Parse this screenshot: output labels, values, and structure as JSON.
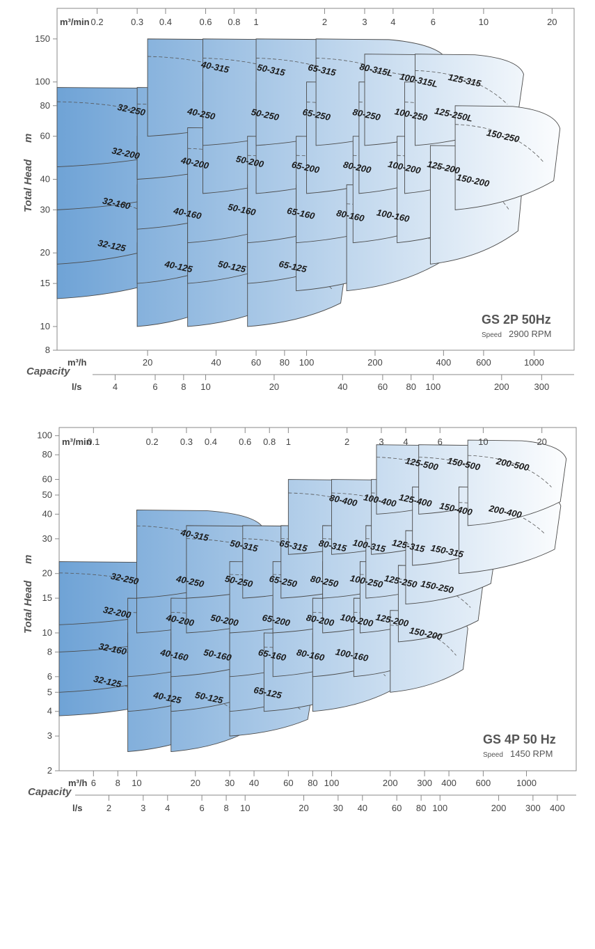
{
  "colors": {
    "gradient_start": "#6fa3d6",
    "gradient_end": "#ffffff",
    "frame": "#888888",
    "text": "#444444"
  },
  "chart_data": [
    {
      "type": "area",
      "title": "GS 2P 50Hz",
      "subtitle_prefix": "Speed",
      "subtitle_value": "2900 RPM",
      "ylabel": "Total Head",
      "yunit": "m",
      "xlabel": "Capacity",
      "yscale": "log",
      "xscale": "log",
      "xunit": "m³/h",
      "xlim": [
        8,
        1500
      ],
      "ylim": [
        8,
        200
      ],
      "y_ticks": [
        "150",
        "100",
        "80",
        "60",
        "40",
        "30",
        "20",
        "15",
        "10",
        "8"
      ],
      "top_axis_unit": "m³/min",
      "top_axis_ticks": [
        "0.2",
        "0.3",
        "0.4",
        "0.6",
        "0.8",
        "1",
        "2",
        "3",
        "4",
        "6",
        "10",
        "20"
      ],
      "bottom_axis_unit": "m³/h",
      "bottom_axis_ticks": [
        "20",
        "40",
        "60",
        "80",
        "100",
        "200",
        "400",
        "600",
        "1000"
      ],
      "ls_axis_unit": "l/s",
      "ls_axis_ticks": [
        "4",
        "6",
        "8",
        "10",
        "20",
        "40",
        "60",
        "80",
        "100",
        "200",
        "300"
      ],
      "series": [
        {
          "name": "32-125",
          "q": [
            8,
            27
          ],
          "h": [
            13,
            26
          ]
        },
        {
          "name": "32-160",
          "q": [
            8,
            30
          ],
          "h": [
            18,
            40
          ]
        },
        {
          "name": "32-200",
          "q": [
            8,
            37
          ],
          "h": [
            30,
            63
          ]
        },
        {
          "name": "32-250",
          "q": [
            8,
            42
          ],
          "h": [
            45,
            95
          ]
        },
        {
          "name": "40-125",
          "q": [
            18,
            45
          ],
          "h": [
            10,
            22
          ]
        },
        {
          "name": "40-160",
          "q": [
            18,
            55
          ],
          "h": [
            15,
            38
          ]
        },
        {
          "name": "40-200",
          "q": [
            18,
            65
          ],
          "h": [
            25,
            60
          ]
        },
        {
          "name": "40-250",
          "q": [
            18,
            75
          ],
          "h": [
            40,
            95
          ]
        },
        {
          "name": "40-315",
          "q": [
            20,
            90
          ],
          "h": [
            60,
            150
          ]
        },
        {
          "name": "50-125",
          "q": [
            30,
            80
          ],
          "h": [
            10,
            22
          ]
        },
        {
          "name": "50-160",
          "q": [
            30,
            100
          ],
          "h": [
            15,
            40
          ]
        },
        {
          "name": "50-200",
          "q": [
            30,
            120
          ],
          "h": [
            22,
            65
          ]
        },
        {
          "name": "50-250",
          "q": [
            35,
            140
          ],
          "h": [
            35,
            100
          ]
        },
        {
          "name": "50-315",
          "q": [
            35,
            160
          ],
          "h": [
            55,
            150
          ]
        },
        {
          "name": "65-125",
          "q": [
            55,
            150
          ],
          "h": [
            10,
            22
          ]
        },
        {
          "name": "65-160",
          "q": [
            55,
            180
          ],
          "h": [
            15,
            38
          ]
        },
        {
          "name": "65-200",
          "q": [
            55,
            200
          ],
          "h": [
            22,
            60
          ]
        },
        {
          "name": "65-250",
          "q": [
            60,
            230
          ],
          "h": [
            35,
            100
          ]
        },
        {
          "name": "65-315",
          "q": [
            60,
            260
          ],
          "h": [
            55,
            150
          ]
        },
        {
          "name": "80-160",
          "q": [
            90,
            300
          ],
          "h": [
            14,
            38
          ]
        },
        {
          "name": "80-200",
          "q": [
            90,
            350
          ],
          "h": [
            22,
            60
          ]
        },
        {
          "name": "80-250",
          "q": [
            100,
            380
          ],
          "h": [
            35,
            100
          ]
        },
        {
          "name": "80-315L",
          "q": [
            110,
            420
          ],
          "h": [
            55,
            150
          ]
        },
        {
          "name": "100-160",
          "q": [
            150,
            420
          ],
          "h": [
            14,
            38
          ]
        },
        {
          "name": "100-200",
          "q": [
            160,
            500
          ],
          "h": [
            22,
            60
          ]
        },
        {
          "name": "100-250",
          "q": [
            170,
            540
          ],
          "h": [
            35,
            100
          ]
        },
        {
          "name": "100-315L",
          "q": [
            180,
            600
          ],
          "h": [
            55,
            130
          ]
        },
        {
          "name": "125-200",
          "q": [
            250,
            700
          ],
          "h": [
            22,
            60
          ]
        },
        {
          "name": "125-250L",
          "q": [
            270,
            800
          ],
          "h": [
            35,
            100
          ]
        },
        {
          "name": "125-315",
          "q": [
            300,
            900
          ],
          "h": [
            55,
            130
          ]
        },
        {
          "name": "150-200",
          "q": [
            350,
            900
          ],
          "h": [
            18,
            55
          ]
        },
        {
          "name": "150-250",
          "q": [
            450,
            1300
          ],
          "h": [
            30,
            80
          ]
        }
      ]
    },
    {
      "type": "area",
      "title": "GS 4P 50 Hz",
      "subtitle_prefix": "Speed",
      "subtitle_value": "1450 RPM",
      "ylabel": "Total Head",
      "yunit": "m",
      "xlabel": "Capacity",
      "yscale": "log",
      "xscale": "log",
      "xunit": "m³/h",
      "xlim": [
        4,
        1800
      ],
      "ylim": [
        2,
        110
      ],
      "y_ticks": [
        "100",
        "80",
        "60",
        "50",
        "40",
        "30",
        "20",
        "15",
        "10",
        "8",
        "6",
        "5",
        "4",
        "3",
        "2"
      ],
      "top_axis_unit": "m³/min",
      "top_axis_ticks": [
        "0.1",
        "0.2",
        "0.3",
        "0.4",
        "0.6",
        "0.8",
        "1",
        "2",
        "3",
        "4",
        "6",
        "10",
        "20"
      ],
      "bottom_axis_unit": "m³/h",
      "bottom_axis_ticks": [
        "6",
        "8",
        "10",
        "20",
        "30",
        "40",
        "60",
        "80",
        "100",
        "200",
        "300",
        "400",
        "600",
        "1000"
      ],
      "ls_axis_unit": "l/s",
      "ls_axis_ticks": [
        "2",
        "3",
        "4",
        "6",
        "8",
        "10",
        "20",
        "30",
        "40",
        "60",
        "80",
        "100",
        "200",
        "300",
        "400"
      ],
      "series": [
        {
          "name": "32-125",
          "q": [
            4,
            14
          ],
          "h": [
            3.8,
            6.5
          ]
        },
        {
          "name": "32-160",
          "q": [
            4,
            16
          ],
          "h": [
            5,
            10
          ]
        },
        {
          "name": "32-200",
          "q": [
            4,
            18
          ],
          "h": [
            8,
            15
          ]
        },
        {
          "name": "32-250",
          "q": [
            4,
            22
          ],
          "h": [
            11,
            23
          ]
        },
        {
          "name": "40-125",
          "q": [
            9,
            25
          ],
          "h": [
            2.5,
            6
          ]
        },
        {
          "name": "40-160",
          "q": [
            9,
            30
          ],
          "h": [
            4,
            10
          ]
        },
        {
          "name": "40-200",
          "q": [
            9,
            35
          ],
          "h": [
            6,
            15
          ]
        },
        {
          "name": "40-250",
          "q": [
            10,
            40
          ],
          "h": [
            10,
            23
          ]
        },
        {
          "name": "40-315",
          "q": [
            10,
            45
          ],
          "h": [
            15,
            42
          ]
        },
        {
          "name": "50-125",
          "q": [
            15,
            40
          ],
          "h": [
            2.5,
            6
          ]
        },
        {
          "name": "50-160",
          "q": [
            15,
            50
          ],
          "h": [
            4,
            10
          ]
        },
        {
          "name": "50-200",
          "q": [
            15,
            60
          ],
          "h": [
            6,
            15
          ]
        },
        {
          "name": "50-250",
          "q": [
            18,
            70
          ],
          "h": [
            10,
            23
          ]
        },
        {
          "name": "50-315",
          "q": [
            18,
            80
          ],
          "h": [
            15,
            35
          ]
        },
        {
          "name": "65-125",
          "q": [
            30,
            80
          ],
          "h": [
            3,
            6
          ]
        },
        {
          "name": "65-160",
          "q": [
            30,
            90
          ],
          "h": [
            4,
            10
          ]
        },
        {
          "name": "65-200",
          "q": [
            30,
            100
          ],
          "h": [
            6,
            15
          ]
        },
        {
          "name": "65-250",
          "q": [
            30,
            120
          ],
          "h": [
            10,
            23
          ]
        },
        {
          "name": "65-315",
          "q": [
            35,
            130
          ],
          "h": [
            15,
            35
          ]
        },
        {
          "name": "80-160",
          "q": [
            45,
            150
          ],
          "h": [
            4,
            10
          ]
        },
        {
          "name": "80-200",
          "q": [
            50,
            170
          ],
          "h": [
            6,
            15
          ]
        },
        {
          "name": "80-250",
          "q": [
            50,
            190
          ],
          "h": [
            10,
            23
          ]
        },
        {
          "name": "80-315",
          "q": [
            55,
            210
          ],
          "h": [
            15,
            35
          ]
        },
        {
          "name": "80-400",
          "q": [
            60,
            250
          ],
          "h": [
            25,
            60
          ]
        },
        {
          "name": "100-160",
          "q": [
            80,
            220
          ],
          "h": [
            4,
            10
          ]
        },
        {
          "name": "100-200",
          "q": [
            80,
            250
          ],
          "h": [
            6,
            15
          ]
        },
        {
          "name": "100-250",
          "q": [
            90,
            280
          ],
          "h": [
            10,
            23
          ]
        },
        {
          "name": "100-315",
          "q": [
            90,
            300
          ],
          "h": [
            15,
            35
          ]
        },
        {
          "name": "100-400",
          "q": [
            100,
            350
          ],
          "h": [
            25,
            60
          ]
        },
        {
          "name": "125-200",
          "q": [
            130,
            350
          ],
          "h": [
            6,
            15
          ]
        },
        {
          "name": "125-250",
          "q": [
            140,
            400
          ],
          "h": [
            10,
            23
          ]
        },
        {
          "name": "125-315",
          "q": [
            150,
            450
          ],
          "h": [
            15,
            35
          ]
        },
        {
          "name": "125-400",
          "q": [
            160,
            500
          ],
          "h": [
            25,
            60
          ]
        },
        {
          "name": "125-500",
          "q": [
            170,
            550
          ],
          "h": [
            40,
            90
          ]
        },
        {
          "name": "150-200",
          "q": [
            200,
            500
          ],
          "h": [
            5,
            13
          ]
        },
        {
          "name": "150-250",
          "q": [
            220,
            600
          ],
          "h": [
            9,
            22
          ]
        },
        {
          "name": "150-315",
          "q": [
            240,
            700
          ],
          "h": [
            14,
            33
          ]
        },
        {
          "name": "150-400",
          "q": [
            260,
            800
          ],
          "h": [
            22,
            55
          ]
        },
        {
          "name": "150-500",
          "q": [
            280,
            900
          ],
          "h": [
            40,
            90
          ]
        },
        {
          "name": "200-400",
          "q": [
            450,
            1500
          ],
          "h": [
            20,
            55
          ]
        },
        {
          "name": "200-500",
          "q": [
            500,
            1600
          ],
          "h": [
            35,
            95
          ]
        }
      ]
    }
  ]
}
